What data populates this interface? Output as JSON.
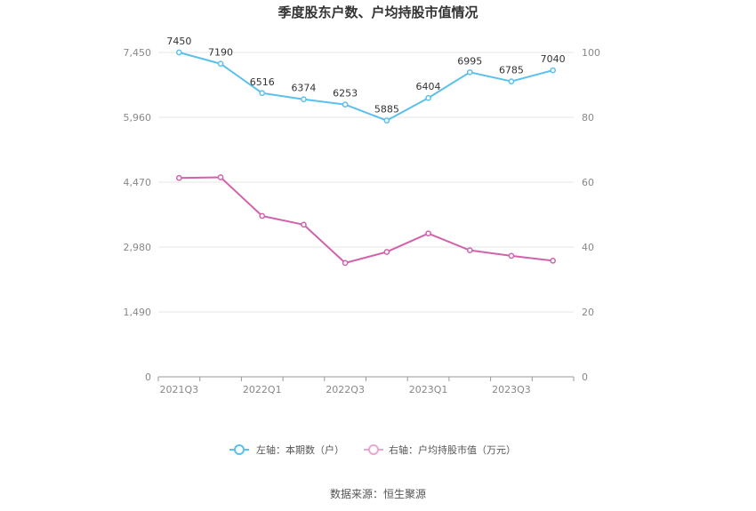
{
  "chart_data": {
    "type": "line",
    "title": "季度股东户数、户均持股市值情况",
    "x": [
      "2021Q3",
      "2021Q4",
      "2022Q1",
      "2022Q2",
      "2022Q3",
      "2022Q4",
      "2023Q1",
      "2023Q2",
      "2023Q3",
      "2023Q4"
    ],
    "x_tick_labels": [
      "2021Q3",
      "",
      "2022Q1",
      "",
      "2022Q3",
      "",
      "2023Q1",
      "",
      "2023Q3",
      ""
    ],
    "y_left": {
      "ticks": [
        "0",
        "1,490",
        "2,980",
        "4,470",
        "5,960",
        "7,450"
      ],
      "ylim": [
        0,
        7450
      ]
    },
    "y_right": {
      "ticks": [
        "0",
        "20",
        "40",
        "60",
        "80",
        "100"
      ],
      "ylim": [
        0,
        100
      ]
    },
    "grid": true,
    "legend_position": "bottom",
    "series": [
      {
        "name": "左轴：本期数（户）",
        "axis": "left",
        "color": "#5bc0eb",
        "values": [
          7450,
          7190,
          6516,
          6374,
          6253,
          5885,
          6404,
          6995,
          6785,
          7040
        ],
        "labels": [
          "7450",
          "7190",
          "6516",
          "6374",
          "6253",
          "5885",
          "6404",
          "6995",
          "6785",
          "7040"
        ]
      },
      {
        "name": "右轴：户均持股市值（万元）",
        "axis": "right",
        "color": "#d063ac",
        "values": [
          61.3,
          61.5,
          49.6,
          46.9,
          35.1,
          38.5,
          44.2,
          39.0,
          37.3,
          35.8
        ]
      }
    ]
  },
  "source": "数据来源：恒生聚源"
}
